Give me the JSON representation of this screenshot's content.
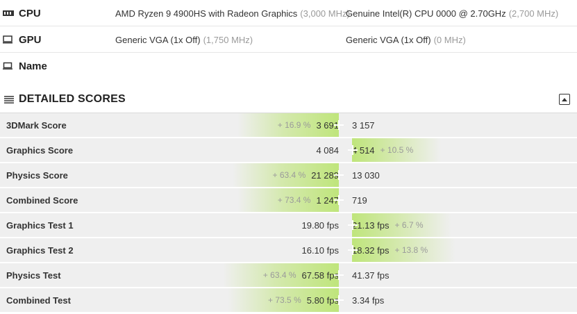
{
  "specs": {
    "cpu": {
      "label": "CPU",
      "icon": "cpu-icon",
      "left": {
        "name": "AMD Ryzen 9 4900HS with Radeon Graphics",
        "freq": "(3,000 MHz)"
      },
      "right": {
        "name": "Genuine Intel(R) CPU 0000 @ 2.70GHz",
        "freq": "(2,700 MHz)"
      }
    },
    "gpu": {
      "label": "GPU",
      "icon": "monitor-icon",
      "left": {
        "name": "Generic VGA (1x Off)",
        "freq": "(1,750 MHz)"
      },
      "right": {
        "name": "Generic VGA (1x Off)",
        "freq": "(0 MHz)"
      }
    },
    "name": {
      "label": "Name",
      "icon": "laptop-icon"
    }
  },
  "detailed": {
    "title": "DETAILED SCORES",
    "icon": "list-icon",
    "collapse_icon": "collapse-up-icon"
  },
  "scores": [
    {
      "name": "3DMark Score",
      "left": "3 691",
      "right": "3 157",
      "winner": "left",
      "pct": "+ 16.9 %"
    },
    {
      "name": "Graphics Score",
      "left": "4 084",
      "right": "4 514",
      "winner": "right",
      "pct": "+ 10.5 %"
    },
    {
      "name": "Physics Score",
      "left": "21 289",
      "right": "13 030",
      "winner": "left",
      "pct": "+ 63.4 %"
    },
    {
      "name": "Combined Score",
      "left": "1 247",
      "right": "719",
      "winner": "left",
      "pct": "+ 73.4 %"
    },
    {
      "name": "Graphics Test 1",
      "left": "19.80 fps",
      "right": "21.13 fps",
      "winner": "right",
      "pct": "+ 6.7 %"
    },
    {
      "name": "Graphics Test 2",
      "left": "16.10 fps",
      "right": "18.32 fps",
      "winner": "right",
      "pct": "+ 13.8 %"
    },
    {
      "name": "Physics Test",
      "left": "67.58 fps",
      "right": "41.37 fps",
      "winner": "left",
      "pct": "+ 63.4 %"
    },
    {
      "name": "Combined Test",
      "left": "5.80 fps",
      "right": "3.34 fps",
      "winner": "left",
      "pct": "+ 73.5 %"
    }
  ],
  "colors": {
    "winner_green": "#bfe57b",
    "row_bg": "#efefef",
    "muted_text": "#9a9a9a"
  }
}
